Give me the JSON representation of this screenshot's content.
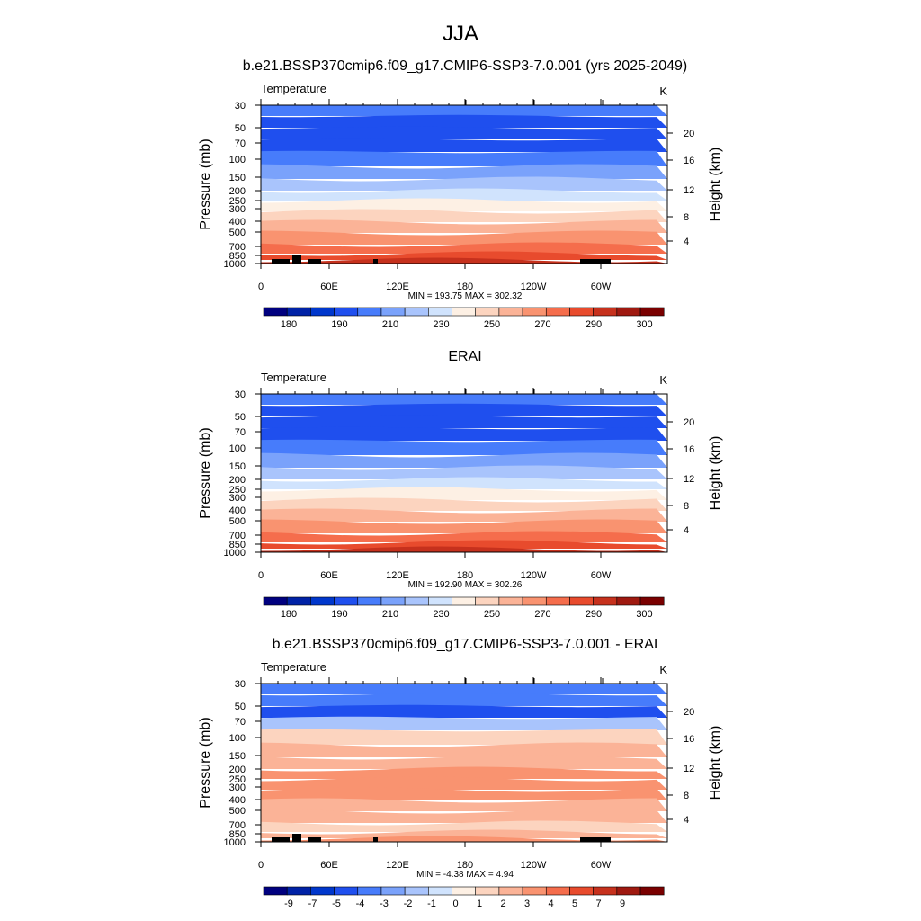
{
  "figure": {
    "season": "JJA"
  },
  "legend_colors": [
    "#00007f",
    "#0022a6",
    "#0037cc",
    "#1f4fee",
    "#477cfb",
    "#7aa2fb",
    "#a9c4fc",
    "#d0e3fd",
    "#fdf0e4",
    "#fcd4bf",
    "#fbb397",
    "#f99370",
    "#f56d4c",
    "#e84b2d",
    "#c6311d",
    "#9f1910",
    "#7a0000"
  ],
  "chart_data": [
    {
      "type": "contour",
      "id": "model",
      "title": "b.e21.BSSP370cmip6.f09_g17.CMIP6-SSP3-7.0.001 (yrs 2025-2049)",
      "left_label": "Temperature",
      "right_label": "K",
      "ylabel": "Pressure (mb)",
      "ylabel_right": "Height (km)",
      "stats": "MIN = 193.75  MAX = 302.32",
      "pressure_ticks": [
        "30",
        "50",
        "70",
        "100",
        "150",
        "200",
        "250",
        "300",
        "400",
        "500",
        "700",
        "850",
        "1000"
      ],
      "height_ticks": [
        "20",
        "16",
        "12",
        "8",
        "4"
      ],
      "lon_ticks": [
        "0",
        "60E",
        "120E",
        "180",
        "120W",
        "60W"
      ],
      "legend_ticks": [
        "180",
        "190",
        "210",
        "230",
        "250",
        "270",
        "290",
        "300"
      ],
      "band_colors": [
        "#477cfb",
        "#1f4fee",
        "#1f4fee",
        "#1f4fee",
        "#477cfb",
        "#7aa2fb",
        "#a9c4fc",
        "#d0e3fd",
        "#fdf0e4",
        "#fcd4bf",
        "#fbb397",
        "#f99370",
        "#f56d4c",
        "#e84b2d",
        "#c6311d"
      ],
      "terrain": true
    },
    {
      "type": "contour",
      "id": "obs",
      "title": "ERAI",
      "left_label": "Temperature",
      "right_label": "K",
      "ylabel": "Pressure (mb)",
      "ylabel_right": "Height (km)",
      "stats": "MIN = 192.90  MAX = 302.26",
      "pressure_ticks": [
        "30",
        "50",
        "70",
        "100",
        "150",
        "200",
        "250",
        "300",
        "400",
        "500",
        "700",
        "850",
        "1000"
      ],
      "height_ticks": [
        "20",
        "16",
        "12",
        "8",
        "4"
      ],
      "lon_ticks": [
        "0",
        "60E",
        "120E",
        "180",
        "120W",
        "60W"
      ],
      "legend_ticks": [
        "180",
        "190",
        "210",
        "230",
        "250",
        "270",
        "290",
        "300"
      ],
      "band_colors": [
        "#477cfb",
        "#1f4fee",
        "#1f4fee",
        "#1f4fee",
        "#477cfb",
        "#7aa2fb",
        "#a9c4fc",
        "#d0e3fd",
        "#fdf0e4",
        "#fcd4bf",
        "#fbb397",
        "#f99370",
        "#f56d4c",
        "#e84b2d",
        "#c6311d"
      ],
      "terrain": false
    },
    {
      "type": "contour",
      "id": "diff",
      "title": "b.e21.BSSP370cmip6.f09_g17.CMIP6-SSP3-7.0.001 - ERAI",
      "left_label": "Temperature",
      "right_label": "K",
      "ylabel": "Pressure (mb)",
      "ylabel_right": "Height (km)",
      "stats": "MIN =  -4.38  MAX =   4.94",
      "pressure_ticks": [
        "30",
        "50",
        "70",
        "100",
        "150",
        "200",
        "250",
        "300",
        "400",
        "500",
        "700",
        "850",
        "1000"
      ],
      "height_ticks": [
        "20",
        "16",
        "12",
        "8",
        "4"
      ],
      "lon_ticks": [
        "0",
        "60E",
        "120E",
        "180",
        "120W",
        "60W"
      ],
      "legend_ticks": [
        "-9",
        "-7",
        "-5",
        "-4",
        "-3",
        "-2",
        "-1",
        "0",
        "1",
        "2",
        "3",
        "4",
        "5",
        "7",
        "9"
      ],
      "band_colors": [
        "#477cfb",
        "#477cfb",
        "#1f4fee",
        "#a9c4fc",
        "#fcd4bf",
        "#fbb397",
        "#fbb397",
        "#f99370",
        "#f99370",
        "#f99370",
        "#fbb397",
        "#fbb397",
        "#fcd4bf",
        "#fbb397",
        "#f99370"
      ],
      "terrain": true
    }
  ]
}
